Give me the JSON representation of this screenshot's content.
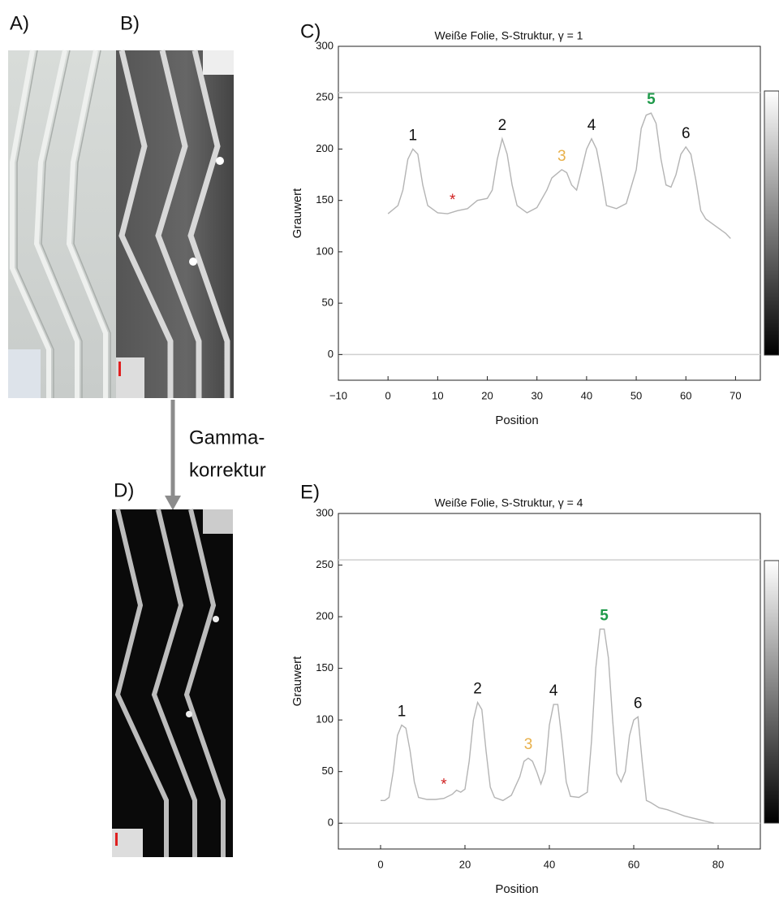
{
  "panel_labels": [
    "A)",
    "B)",
    "C)",
    "D)",
    "E)"
  ],
  "arrow_label": [
    "Gamma-",
    "korrektur"
  ],
  "chart_data": [
    {
      "type": "line",
      "title": "Weiße Folie, S-Struktur, γ = 1",
      "x_label": "Position",
      "y_label": "Grauwert",
      "x": [
        0,
        2,
        3,
        4,
        5,
        6,
        7,
        8,
        10,
        12,
        14,
        16,
        18,
        20,
        21,
        22,
        23,
        24,
        25,
        26,
        28,
        30,
        32,
        33,
        35,
        36,
        37,
        38,
        39,
        40,
        41,
        42,
        43,
        44,
        46,
        48,
        50,
        51,
        52,
        53,
        54,
        55,
        56,
        57,
        58,
        59,
        60,
        61,
        62,
        63,
        64,
        66,
        68,
        69
      ],
      "values": [
        137,
        145,
        160,
        190,
        200,
        195,
        165,
        145,
        138,
        137,
        140,
        142,
        150,
        152,
        160,
        190,
        210,
        195,
        165,
        145,
        138,
        143,
        160,
        172,
        180,
        177,
        165,
        160,
        180,
        200,
        210,
        200,
        175,
        145,
        142,
        147,
        180,
        220,
        233,
        235,
        225,
        190,
        165,
        163,
        175,
        195,
        202,
        195,
        170,
        140,
        132,
        125,
        118,
        113
      ],
      "color": "#b4b4b4",
      "xlim": [
        -10,
        75
      ],
      "xticks": [
        {
          "value": -10,
          "label": "−10"
        },
        0,
        10,
        20,
        30,
        40,
        50,
        60,
        70
      ],
      "ylim": [
        -25,
        300
      ],
      "yticks": [
        0,
        50,
        100,
        150,
        200,
        250,
        300
      ],
      "reference_lines": [
        0,
        255
      ],
      "annotations": [
        {
          "text": "1",
          "x": 5,
          "color": "#111111",
          "bold": false
        },
        {
          "text": "2",
          "x": 23,
          "color": "#111111",
          "bold": false
        },
        {
          "text": "3",
          "x": 35,
          "color": "#e8b04a",
          "bold": false
        },
        {
          "text": "4",
          "x": 41,
          "color": "#111111",
          "bold": false
        },
        {
          "text": "5",
          "x": 53,
          "color": "#1f9a4a",
          "bold": true
        },
        {
          "text": "6",
          "x": 60,
          "color": "#111111",
          "bold": false
        },
        {
          "text": "*",
          "x": 13,
          "color": "#d02020",
          "bold": false
        }
      ]
    },
    {
      "type": "line",
      "title": "Weiße Folie, S-Struktur, γ = 4",
      "x_label": "Position",
      "y_label": "Grauwert",
      "x": [
        0,
        1,
        2,
        3,
        4,
        5,
        6,
        7,
        8,
        9,
        11,
        13,
        15,
        17,
        18,
        19,
        20,
        21,
        22,
        23,
        24,
        25,
        26,
        27,
        29,
        31,
        33,
        34,
        35,
        36,
        37,
        38,
        39,
        40,
        41,
        42,
        43,
        44,
        45,
        47,
        49,
        50,
        51,
        52,
        53,
        54,
        55,
        56,
        57,
        58,
        59,
        60,
        61,
        62,
        63,
        64,
        66,
        68,
        70,
        72,
        74,
        76,
        78,
        79
      ],
      "values": [
        22,
        22,
        25,
        50,
        85,
        95,
        92,
        70,
        40,
        25,
        23,
        23,
        24,
        28,
        32,
        30,
        33,
        60,
        100,
        117,
        110,
        70,
        35,
        25,
        22,
        27,
        45,
        60,
        63,
        60,
        50,
        38,
        50,
        95,
        115,
        115,
        80,
        40,
        26,
        25,
        30,
        80,
        150,
        188,
        188,
        160,
        100,
        48,
        40,
        50,
        85,
        100,
        103,
        60,
        22,
        20,
        15,
        13,
        10,
        7,
        5,
        3,
        1,
        0
      ],
      "color": "#b4b4b4",
      "xlim": [
        -10,
        90
      ],
      "xticks": [
        0,
        20,
        40,
        60,
        80
      ],
      "ylim": [
        -25,
        300
      ],
      "yticks": [
        0,
        50,
        100,
        150,
        200,
        250,
        300
      ],
      "reference_lines": [
        0,
        255
      ],
      "annotations": [
        {
          "text": "1",
          "x": 5,
          "color": "#111111",
          "bold": false
        },
        {
          "text": "2",
          "x": 23,
          "color": "#111111",
          "bold": false
        },
        {
          "text": "3",
          "x": 35,
          "color": "#e8b04a",
          "bold": false
        },
        {
          "text": "4",
          "x": 41,
          "color": "#111111",
          "bold": false
        },
        {
          "text": "5",
          "x": 53,
          "color": "#1f9a4a",
          "bold": true
        },
        {
          "text": "6",
          "x": 61,
          "color": "#111111",
          "bold": false
        },
        {
          "text": "*",
          "x": 15,
          "color": "#d02020",
          "bold": false
        }
      ]
    }
  ]
}
